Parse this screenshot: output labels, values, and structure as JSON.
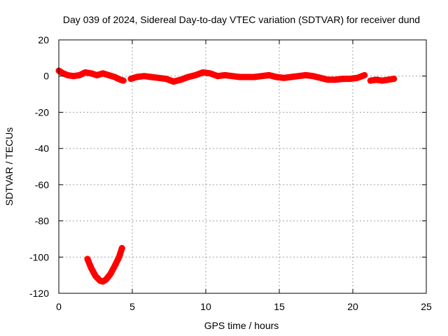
{
  "chart_data": {
    "type": "scatter",
    "title": "Day 039 of 2024, Sidereal Day-to-day VTEC variation (SDTVAR) for receiver dund",
    "xlabel": "GPS time / hours",
    "ylabel": "SDTVAR / TECUs",
    "xlim": [
      0,
      25
    ],
    "ylim": [
      -120,
      20
    ],
    "x_ticks": [
      0,
      5,
      10,
      15,
      20,
      25
    ],
    "y_ticks": [
      20,
      0,
      -20,
      -40,
      -60,
      -80,
      -100,
      -120
    ],
    "grid": true,
    "marker_color": "#ff0000",
    "series": [
      {
        "name": "sdtvar-segment-a",
        "x": [
          0.0,
          0.3,
          0.6,
          1.0,
          1.4,
          1.8,
          2.2,
          2.6,
          3.0,
          3.4,
          3.8,
          4.2,
          4.4
        ],
        "y": [
          3.0,
          1.5,
          0.5,
          0.0,
          0.5,
          2.0,
          1.5,
          0.5,
          1.5,
          0.5,
          -0.5,
          -2.0,
          -2.5
        ]
      },
      {
        "name": "sdtvar-segment-b",
        "x": [
          4.9,
          5.3,
          5.8,
          6.3,
          6.8,
          7.3,
          7.8,
          8.3,
          8.8,
          9.3,
          9.8,
          10.3,
          10.8,
          11.3,
          11.8,
          12.3,
          12.8,
          13.3,
          13.8,
          14.3,
          14.8,
          15.3,
          15.8,
          16.3,
          16.8,
          17.3,
          17.8,
          18.3,
          18.8,
          19.3,
          19.8,
          20.3,
          20.8
        ],
        "y": [
          -1.5,
          -0.5,
          0.0,
          -0.5,
          -1.0,
          -1.5,
          -3.0,
          -2.0,
          -0.5,
          0.5,
          2.0,
          1.5,
          0.0,
          0.5,
          0.0,
          -0.5,
          -0.5,
          -0.5,
          0.0,
          0.5,
          -0.5,
          -1.0,
          -0.5,
          0.0,
          0.5,
          0.0,
          -1.0,
          -2.0,
          -2.0,
          -1.5,
          -1.5,
          -1.0,
          0.5
        ]
      },
      {
        "name": "sdtvar-segment-c",
        "x": [
          21.2,
          21.6,
          22.0,
          22.4,
          22.8
        ],
        "y": [
          -2.5,
          -2.0,
          -2.5,
          -2.0,
          -1.5
        ]
      },
      {
        "name": "sdtvar-segment-d",
        "x": [
          1.95,
          2.2,
          2.5,
          2.8,
          3.0,
          3.2,
          3.5,
          3.8,
          4.1,
          4.3
        ],
        "y": [
          -101,
          -106,
          -110.5,
          -113,
          -113.5,
          -112.5,
          -109.5,
          -105,
          -100,
          -95
        ]
      }
    ]
  }
}
